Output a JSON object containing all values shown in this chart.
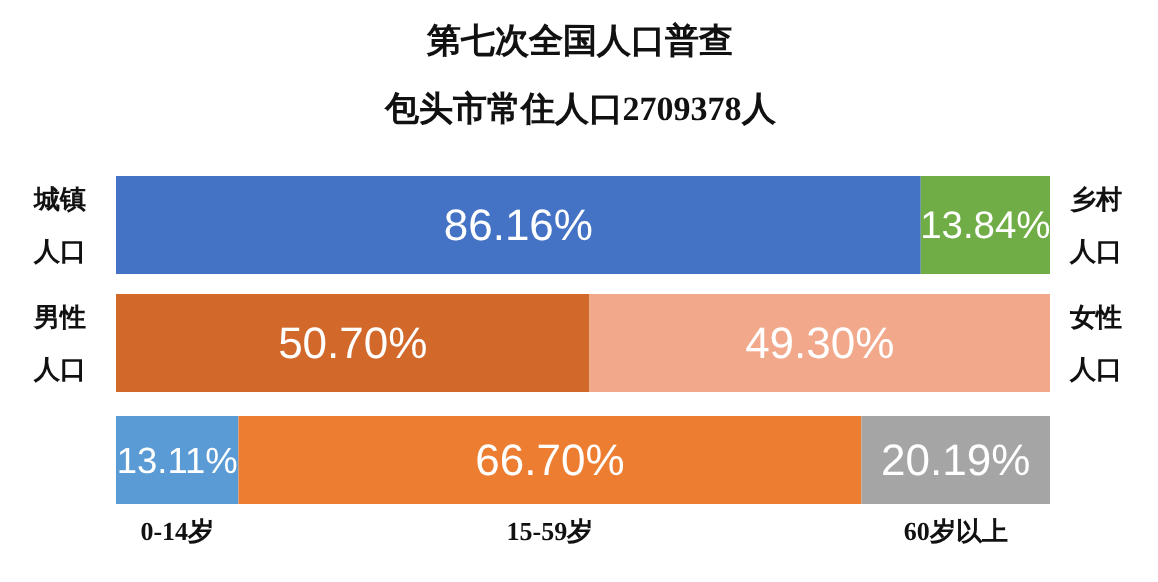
{
  "chart_data": [
    {
      "type": "bar",
      "title": "第七次全国人口普查",
      "subtitle": "包头市常住人口2709378人",
      "orientation": "horizontal",
      "stacked": true,
      "categories": [
        null
      ],
      "xlim": [
        0,
        100
      ],
      "series": [
        {
          "name": "城镇人口",
          "color": "#4472c4",
          "values": [
            86.16
          ],
          "value_labels": [
            "86.16%"
          ]
        },
        {
          "name": "乡村人口",
          "color": "#70ad47",
          "values": [
            13.84
          ],
          "value_labels": [
            "13.84%"
          ]
        }
      ]
    },
    {
      "type": "bar",
      "orientation": "horizontal",
      "stacked": true,
      "categories": [
        null
      ],
      "xlim": [
        0,
        100
      ],
      "series": [
        {
          "name": "男性人口",
          "color": "#d2692a",
          "values": [
            50.7
          ],
          "value_labels": [
            "50.70%"
          ]
        },
        {
          "name": "女性人口",
          "color": "#f2a88b",
          "values": [
            49.3
          ],
          "value_labels": [
            "49.30%"
          ]
        }
      ]
    },
    {
      "type": "bar",
      "orientation": "horizontal",
      "stacked": true,
      "categories": [
        null
      ],
      "xlim": [
        0,
        100
      ],
      "series": [
        {
          "name": "0-14岁",
          "color": "#5b9bd5",
          "values": [
            13.11
          ],
          "value_labels": [
            "13.11%"
          ]
        },
        {
          "name": "15-59岁",
          "color": "#ed7d31",
          "values": [
            66.7
          ],
          "value_labels": [
            "66.70%"
          ]
        },
        {
          "name": "60岁以上",
          "color": "#a5a5a5",
          "values": [
            20.19
          ],
          "value_labels": [
            "20.19%"
          ]
        }
      ]
    }
  ]
}
